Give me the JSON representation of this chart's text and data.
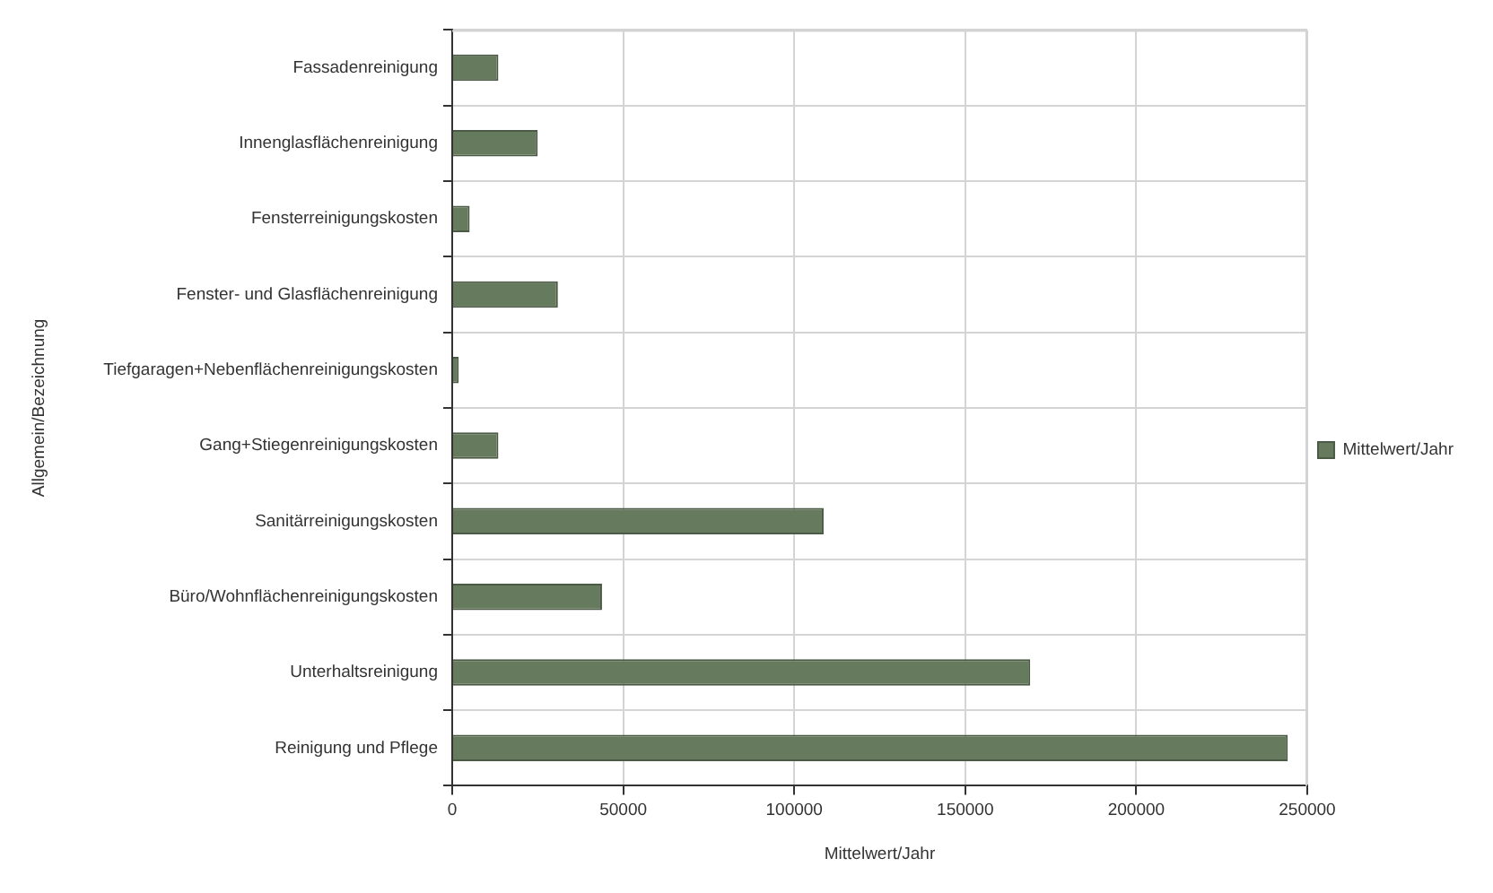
{
  "chart_data": {
    "type": "bar",
    "orientation": "horizontal",
    "xlabel": "Mittelwert/Jahr",
    "ylabel": "Allgemein/Bezeichnung",
    "categories": [
      "Fassadenreinigung",
      "Innenglasflächenreinigung",
      "Fensterreinigungskosten",
      "Fenster- und Glasflächenreinigung",
      "Tiefgaragen+Nebenflächenreinigungskosten",
      "Gang+Stiegenreinigungskosten",
      "Sanitärreinigungskosten",
      "Büro/Wohnflächenreinigungskosten",
      "Unterhaltsreinigung",
      "Reinigung und Pflege"
    ],
    "series": [
      {
        "name": "Mittelwert/Jahr",
        "color": "#667a5e",
        "values": [
          13500,
          25000,
          5100,
          30900,
          1900,
          13500,
          108600,
          43800,
          169000,
          244300
        ]
      }
    ],
    "xlim": [
      0,
      250000
    ],
    "xticks": [
      0,
      50000,
      100000,
      150000,
      200000,
      250000
    ],
    "grid": true,
    "legend": "right"
  }
}
